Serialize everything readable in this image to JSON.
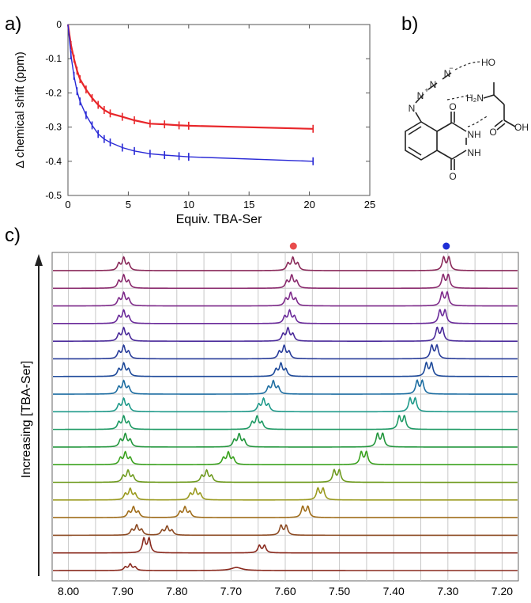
{
  "panel_labels": {
    "a": "a)",
    "b": "b)",
    "c": "c)"
  },
  "chart_data": [
    {
      "type": "scatter",
      "panel": "a",
      "xlabel": "Equiv. TBA-Ser",
      "ylabel": "Δ chemical shift (ppm)",
      "xlim": [
        0,
        25
      ],
      "ylim": [
        -0.5,
        0
      ],
      "x_ticks": [
        "0",
        "5",
        "10",
        "15",
        "20",
        "25"
      ],
      "y_ticks": [
        "0",
        "-0.1",
        "-0.2",
        "-0.3",
        "-0.4",
        "-0.5"
      ],
      "grid": false,
      "series": [
        {
          "color": "#e8262a",
          "marker": "error-bar",
          "x": [
            0,
            0.25,
            0.5,
            0.75,
            1,
            1.5,
            2,
            2.5,
            3,
            3.5,
            4.5,
            5.5,
            6.8,
            8,
            9.2,
            10,
            20.3
          ],
          "y": [
            0,
            -0.06,
            -0.1,
            -0.135,
            -0.16,
            -0.19,
            -0.215,
            -0.235,
            -0.25,
            -0.26,
            -0.27,
            -0.28,
            -0.29,
            -0.292,
            -0.295,
            -0.296,
            -0.305
          ]
        },
        {
          "color": "#2a2ad6",
          "marker": "error-bar",
          "x": [
            0,
            0.25,
            0.5,
            0.75,
            1,
            1.5,
            2,
            2.5,
            3,
            3.5,
            4.5,
            5.5,
            6.8,
            8,
            9.2,
            10,
            20.3
          ],
          "y": [
            0,
            -0.09,
            -0.15,
            -0.195,
            -0.225,
            -0.265,
            -0.295,
            -0.32,
            -0.335,
            -0.345,
            -0.36,
            -0.37,
            -0.378,
            -0.382,
            -0.385,
            -0.387,
            -0.4
          ]
        }
      ]
    },
    {
      "type": "line",
      "panel": "c",
      "ylabel": "Increasing [TBA-Ser]",
      "xlim": [
        8.03,
        7.17
      ],
      "x_ticks": [
        "8.00",
        "7.90",
        "7.80",
        "7.70",
        "7.60",
        "7.50",
        "7.40",
        "7.30",
        "7.20"
      ],
      "markers": [
        {
          "color": "#e84c4c",
          "x": 7.585
        },
        {
          "color": "#1f2fd6",
          "x": 7.303
        }
      ],
      "series": [
        {
          "color": "#8a2a1e",
          "peaks": [
            {
              "x": 7.886,
              "height": 0.55,
              "mult": "t"
            },
            {
              "x": 7.69,
              "height": 0.28,
              "mult": "s",
              "w": 0.012
            }
          ]
        },
        {
          "color": "#8a2a1e",
          "peaks": [
            {
              "x": 7.856,
              "height": 1.25,
              "mult": "d"
            },
            {
              "x": 7.643,
              "height": 0.65,
              "mult": "d"
            }
          ]
        },
        {
          "color": "#8c4a22",
          "peaks": [
            {
              "x": 7.874,
              "height": 0.85,
              "mult": "t"
            },
            {
              "x": 7.818,
              "height": 0.75,
              "mult": "t"
            },
            {
              "x": 7.603,
              "height": 0.85,
              "mult": "d"
            }
          ]
        },
        {
          "color": "#a06d1a",
          "peaks": [
            {
              "x": 7.88,
              "height": 0.9,
              "mult": "t"
            },
            {
              "x": 7.785,
              "height": 0.9,
              "mult": "t"
            },
            {
              "x": 7.563,
              "height": 0.95,
              "mult": "d"
            }
          ]
        },
        {
          "color": "#9a9a1e",
          "peaks": [
            {
              "x": 7.886,
              "height": 0.95,
              "mult": "t"
            },
            {
              "x": 7.766,
              "height": 0.95,
              "mult": "t"
            },
            {
              "x": 7.535,
              "height": 1.0,
              "mult": "d"
            }
          ]
        },
        {
          "color": "#6e9a1e",
          "peaks": [
            {
              "x": 7.89,
              "height": 1.0,
              "mult": "t"
            },
            {
              "x": 7.745,
              "height": 1.0,
              "mult": "t"
            },
            {
              "x": 7.505,
              "height": 1.05,
              "mult": "d"
            }
          ]
        },
        {
          "color": "#3aa21e",
          "peaks": [
            {
              "x": 7.895,
              "height": 1.05,
              "mult": "t"
            },
            {
              "x": 7.705,
              "height": 1.05,
              "mult": "t"
            },
            {
              "x": 7.455,
              "height": 1.1,
              "mult": "d"
            }
          ]
        },
        {
          "color": "#22963c",
          "peaks": [
            {
              "x": 7.895,
              "height": 1.1,
              "mult": "t"
            },
            {
              "x": 7.685,
              "height": 1.1,
              "mult": "t"
            },
            {
              "x": 7.425,
              "height": 1.15,
              "mult": "d"
            }
          ]
        },
        {
          "color": "#1e9a64",
          "peaks": [
            {
              "x": 7.898,
              "height": 1.1,
              "mult": "t"
            },
            {
              "x": 7.652,
              "height": 1.1,
              "mult": "t"
            },
            {
              "x": 7.385,
              "height": 1.15,
              "mult": "d"
            }
          ]
        },
        {
          "color": "#1e9a8a",
          "peaks": [
            {
              "x": 7.898,
              "height": 1.1,
              "mult": "t"
            },
            {
              "x": 7.64,
              "height": 1.1,
              "mult": "t"
            },
            {
              "x": 7.365,
              "height": 1.15,
              "mult": "d"
            }
          ]
        },
        {
          "color": "#1e6ea2",
          "peaks": [
            {
              "x": 7.898,
              "height": 1.1,
              "mult": "t"
            },
            {
              "x": 7.622,
              "height": 1.1,
              "mult": "t"
            },
            {
              "x": 7.352,
              "height": 1.15,
              "mult": "d"
            }
          ]
        },
        {
          "color": "#1e4a9a",
          "peaks": [
            {
              "x": 7.898,
              "height": 1.1,
              "mult": "t"
            },
            {
              "x": 7.608,
              "height": 1.1,
              "mult": "t"
            },
            {
              "x": 7.335,
              "height": 1.15,
              "mult": "d"
            }
          ]
        },
        {
          "color": "#283c9a",
          "peaks": [
            {
              "x": 7.898,
              "height": 1.1,
              "mult": "t"
            },
            {
              "x": 7.602,
              "height": 1.1,
              "mult": "t"
            },
            {
              "x": 7.325,
              "height": 1.15,
              "mult": "d"
            }
          ]
        },
        {
          "color": "#4a2a9a",
          "peaks": [
            {
              "x": 7.898,
              "height": 1.1,
              "mult": "t"
            },
            {
              "x": 7.595,
              "height": 1.1,
              "mult": "t"
            },
            {
              "x": 7.315,
              "height": 1.15,
              "mult": "d"
            }
          ]
        },
        {
          "color": "#6a2a9a",
          "peaks": [
            {
              "x": 7.898,
              "height": 1.1,
              "mult": "t"
            },
            {
              "x": 7.592,
              "height": 1.1,
              "mult": "t"
            },
            {
              "x": 7.31,
              "height": 1.15,
              "mult": "d"
            }
          ]
        },
        {
          "color": "#7e2a8a",
          "peaks": [
            {
              "x": 7.898,
              "height": 1.1,
              "mult": "t"
            },
            {
              "x": 7.59,
              "height": 1.1,
              "mult": "t"
            },
            {
              "x": 7.306,
              "height": 1.15,
              "mult": "d"
            }
          ]
        },
        {
          "color": "#8a2a6e",
          "peaks": [
            {
              "x": 7.898,
              "height": 1.1,
              "mult": "t"
            },
            {
              "x": 7.588,
              "height": 1.1,
              "mult": "t"
            },
            {
              "x": 7.304,
              "height": 1.15,
              "mult": "d"
            }
          ]
        },
        {
          "color": "#8a2a5a",
          "peaks": [
            {
              "x": 7.898,
              "height": 1.1,
              "mult": "t"
            },
            {
              "x": 7.586,
              "height": 1.1,
              "mult": "t"
            },
            {
              "x": 7.303,
              "height": 1.15,
              "mult": "d"
            }
          ]
        }
      ]
    }
  ],
  "structure": {
    "labels": {
      "n1": "N",
      "n2": "N",
      "n3": "N",
      "n4": "N",
      "ho": "HO",
      "h2n": "H₂N",
      "oh": "OH",
      "o_acid": "O",
      "o_top": "O",
      "o_bot": "O",
      "nh1": "NH",
      "nh2": "NH",
      "plus": "+",
      "minus": "−"
    }
  }
}
